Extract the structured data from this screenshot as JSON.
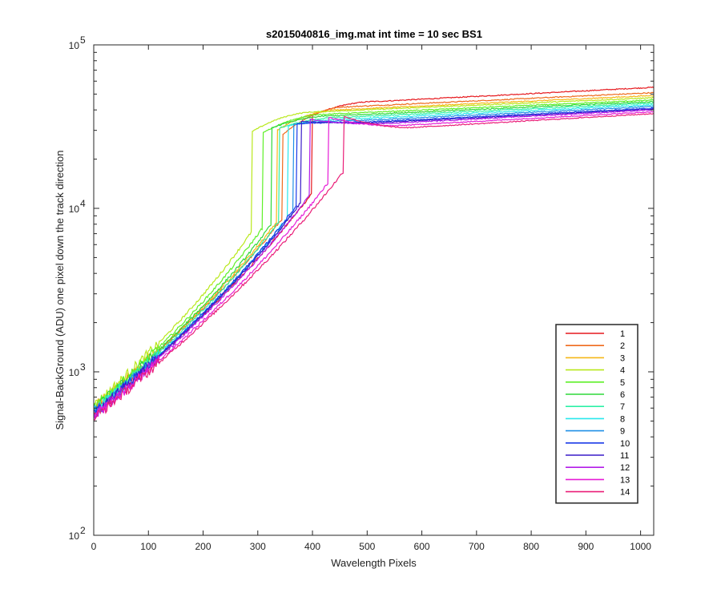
{
  "chart_data": {
    "type": "line",
    "title": "s2015040816_img.mat int time = 10 sec   BS1",
    "xlabel": "Wavelength Pixels",
    "ylabel": "Signal-BackGround (ADU) one pixel down the track direction",
    "xlim": [
      0,
      1024
    ],
    "ylim": [
      100,
      100000
    ],
    "yscale": "log",
    "x_ticks": [
      0,
      100,
      200,
      300,
      400,
      500,
      600,
      700,
      800,
      900,
      1000
    ],
    "x_tick_labels": [
      "0",
      "100",
      "200",
      "300",
      "400",
      "500",
      "600",
      "700",
      "800",
      "900",
      "1000"
    ],
    "y_ticks": [
      100,
      1000,
      10000,
      100000
    ],
    "y_tick_labels": [
      {
        "base": "10",
        "exp": "2"
      },
      {
        "base": "10",
        "exp": "3"
      },
      {
        "base": "10",
        "exp": "4"
      },
      {
        "base": "10",
        "exp": "5"
      }
    ],
    "grid": false,
    "legend_position": "bottom-right",
    "series": [
      {
        "name": "1",
        "color": "#e6191e",
        "jump_x": 400,
        "pre_jump": 12500,
        "post_jump": 37000,
        "end_value": 55000,
        "start_value": 560
      },
      {
        "name": "2",
        "color": "#ef6a1c",
        "jump_x": 345,
        "pre_jump": 8700,
        "post_jump": 28000,
        "end_value": 51000,
        "start_value": 600
      },
      {
        "name": "3",
        "color": "#f5b818",
        "jump_x": 335,
        "pre_jump": 8300,
        "post_jump": 30000,
        "end_value": 49000,
        "start_value": 610
      },
      {
        "name": "4",
        "color": "#b9e81c",
        "jump_x": 290,
        "pre_jump": 7300,
        "post_jump": 29500,
        "end_value": 47500,
        "start_value": 620
      },
      {
        "name": "5",
        "color": "#5ef028",
        "jump_x": 310,
        "pre_jump": 7700,
        "post_jump": 29000,
        "end_value": 46000,
        "start_value": 600
      },
      {
        "name": "6",
        "color": "#2fd83a",
        "jump_x": 325,
        "pre_jump": 8000,
        "post_jump": 31000,
        "end_value": 45000,
        "start_value": 590
      },
      {
        "name": "7",
        "color": "#2ef0a6",
        "jump_x": 340,
        "pre_jump": 8400,
        "post_jump": 31000,
        "end_value": 44000,
        "start_value": 580
      },
      {
        "name": "8",
        "color": "#29e8ec",
        "jump_x": 355,
        "pre_jump": 8900,
        "post_jump": 32000,
        "end_value": 43000,
        "start_value": 570
      },
      {
        "name": "9",
        "color": "#1f8fe6",
        "jump_x": 365,
        "pre_jump": 9500,
        "post_jump": 32500,
        "end_value": 42000,
        "start_value": 565
      },
      {
        "name": "10",
        "color": "#1c3be8",
        "jump_x": 372,
        "pre_jump": 10500,
        "post_jump": 33000,
        "end_value": 41000,
        "start_value": 560
      },
      {
        "name": "11",
        "color": "#3a1cc8",
        "jump_x": 380,
        "pre_jump": 11000,
        "post_jump": 34000,
        "end_value": 40500,
        "start_value": 550
      },
      {
        "name": "12",
        "color": "#b21ce8",
        "jump_x": 395,
        "pre_jump": 12000,
        "post_jump": 35000,
        "end_value": 40000,
        "start_value": 540
      },
      {
        "name": "13",
        "color": "#e61cd6",
        "jump_x": 430,
        "pre_jump": 14500,
        "post_jump": 36000,
        "end_value": 39000,
        "start_value": 530
      },
      {
        "name": "14",
        "color": "#ea1f78",
        "jump_x": 458,
        "pre_jump": 17000,
        "post_jump": 36500,
        "end_value": 38000,
        "start_value": 520
      }
    ]
  }
}
